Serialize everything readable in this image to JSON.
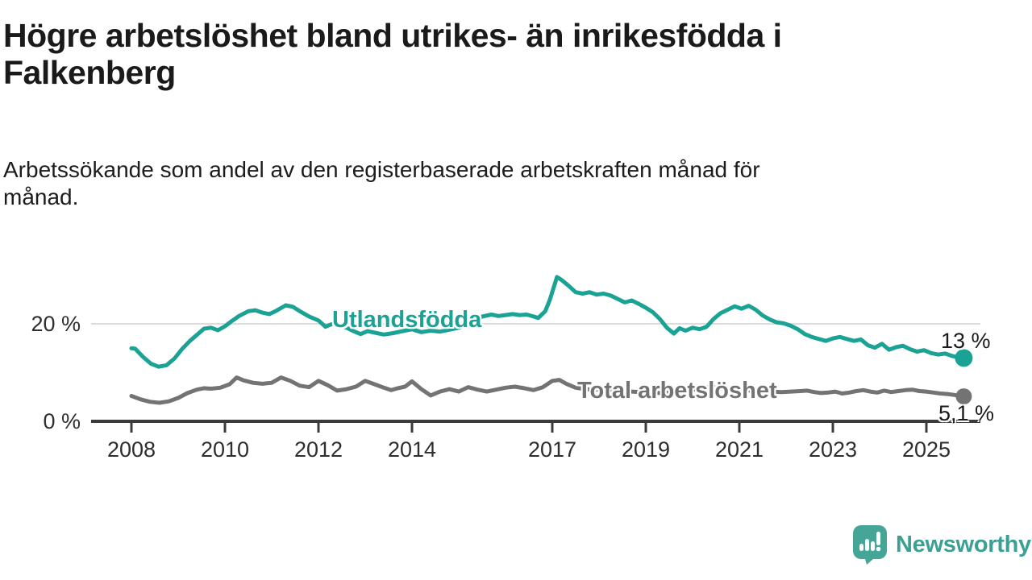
{
  "header": {
    "title_line1": "Högre arbetslöshet bland utrikes- än inrikesfödda i",
    "title_line2": "Falkenberg",
    "subtitle_line1": "Arbetssökande som andel av den registerbaserade arbetskraften månad för",
    "subtitle_line2": "månad."
  },
  "chart_data": {
    "type": "line",
    "title": "Högre arbetslöshet bland utrikes- än inrikesfödda i Falkenberg",
    "subtitle": "Arbetssökande som andel av den registerbaserade arbetskraften månad för månad.",
    "xlabel": "",
    "ylabel": "",
    "x_range": [
      2008,
      2025.8
    ],
    "ylim": [
      0,
      30
    ],
    "grid": "single-horizontal-at-20",
    "legend_position": "inline-labels-on-lines",
    "x_axis": {
      "ticks": [
        {
          "year": 2008,
          "label": "2008"
        },
        {
          "year": 2010,
          "label": "2010"
        },
        {
          "year": 2012,
          "label": "2012"
        },
        {
          "year": 2014,
          "label": "2014"
        },
        {
          "year": 2017,
          "label": "2017"
        },
        {
          "year": 2019,
          "label": "2019"
        },
        {
          "year": 2021,
          "label": "2021"
        },
        {
          "year": 2023,
          "label": "2023"
        },
        {
          "year": 2025,
          "label": "2025"
        }
      ]
    },
    "y_axis": {
      "ticks": [
        {
          "value": 0,
          "label": "0 %"
        },
        {
          "value": 20,
          "label": "20 %"
        }
      ]
    },
    "series": [
      {
        "name": "Utlandsfödda",
        "color": "#1aa294",
        "end_label": "13 %",
        "end_value": 13,
        "points": [
          [
            2008.0,
            15.0
          ],
          [
            2008.08,
            14.9
          ],
          [
            2008.25,
            13.2
          ],
          [
            2008.42,
            11.8
          ],
          [
            2008.58,
            11.2
          ],
          [
            2008.75,
            11.5
          ],
          [
            2008.92,
            12.9
          ],
          [
            2009.08,
            14.8
          ],
          [
            2009.25,
            16.5
          ],
          [
            2009.42,
            17.9
          ],
          [
            2009.55,
            19.0
          ],
          [
            2009.7,
            19.2
          ],
          [
            2009.85,
            18.7
          ],
          [
            2010.0,
            19.5
          ],
          [
            2010.15,
            20.6
          ],
          [
            2010.3,
            21.6
          ],
          [
            2010.5,
            22.6
          ],
          [
            2010.65,
            22.8
          ],
          [
            2010.8,
            22.3
          ],
          [
            2010.95,
            22.0
          ],
          [
            2011.1,
            22.7
          ],
          [
            2011.3,
            23.8
          ],
          [
            2011.45,
            23.5
          ],
          [
            2011.6,
            22.6
          ],
          [
            2011.8,
            21.5
          ],
          [
            2012.0,
            20.7
          ],
          [
            2012.15,
            19.4
          ],
          [
            2012.3,
            20.0
          ],
          [
            2012.45,
            19.7
          ],
          [
            2012.6,
            19.2
          ],
          [
            2012.75,
            18.5
          ],
          [
            2012.9,
            17.9
          ],
          [
            2013.05,
            18.5
          ],
          [
            2013.2,
            18.2
          ],
          [
            2013.4,
            17.8
          ],
          [
            2013.6,
            18.1
          ],
          [
            2013.8,
            18.5
          ],
          [
            2014.0,
            18.9
          ],
          [
            2014.2,
            18.3
          ],
          [
            2014.4,
            18.6
          ],
          [
            2014.6,
            18.4
          ],
          [
            2014.8,
            18.8
          ],
          [
            2015.0,
            19.2
          ],
          [
            2015.2,
            19.8
          ],
          [
            2015.35,
            20.6
          ],
          [
            2015.5,
            21.5
          ],
          [
            2015.7,
            21.9
          ],
          [
            2015.85,
            21.6
          ],
          [
            2016.0,
            21.8
          ],
          [
            2016.15,
            22.0
          ],
          [
            2016.3,
            21.8
          ],
          [
            2016.45,
            21.9
          ],
          [
            2016.6,
            21.5
          ],
          [
            2016.7,
            21.2
          ],
          [
            2016.85,
            22.6
          ],
          [
            2016.95,
            25.0
          ],
          [
            2017.1,
            29.6
          ],
          [
            2017.2,
            29.0
          ],
          [
            2017.35,
            27.8
          ],
          [
            2017.5,
            26.5
          ],
          [
            2017.65,
            26.2
          ],
          [
            2017.8,
            26.5
          ],
          [
            2017.95,
            26.0
          ],
          [
            2018.1,
            26.2
          ],
          [
            2018.25,
            25.8
          ],
          [
            2018.4,
            25.1
          ],
          [
            2018.55,
            24.4
          ],
          [
            2018.7,
            24.8
          ],
          [
            2018.85,
            24.1
          ],
          [
            2019.0,
            23.3
          ],
          [
            2019.15,
            22.4
          ],
          [
            2019.3,
            21.0
          ],
          [
            2019.45,
            19.2
          ],
          [
            2019.6,
            18.0
          ],
          [
            2019.72,
            19.1
          ],
          [
            2019.85,
            18.6
          ],
          [
            2020.0,
            19.2
          ],
          [
            2020.15,
            18.9
          ],
          [
            2020.3,
            19.4
          ],
          [
            2020.45,
            21.0
          ],
          [
            2020.6,
            22.2
          ],
          [
            2020.75,
            22.9
          ],
          [
            2020.9,
            23.6
          ],
          [
            2021.05,
            23.1
          ],
          [
            2021.2,
            23.7
          ],
          [
            2021.35,
            22.9
          ],
          [
            2021.5,
            21.7
          ],
          [
            2021.65,
            20.9
          ],
          [
            2021.8,
            20.3
          ],
          [
            2021.95,
            20.1
          ],
          [
            2022.1,
            19.6
          ],
          [
            2022.25,
            18.9
          ],
          [
            2022.4,
            17.9
          ],
          [
            2022.55,
            17.3
          ],
          [
            2022.7,
            16.9
          ],
          [
            2022.85,
            16.5
          ],
          [
            2023.0,
            17.0
          ],
          [
            2023.15,
            17.3
          ],
          [
            2023.3,
            16.9
          ],
          [
            2023.45,
            16.5
          ],
          [
            2023.6,
            16.8
          ],
          [
            2023.75,
            15.6
          ],
          [
            2023.9,
            15.1
          ],
          [
            2024.05,
            15.9
          ],
          [
            2024.2,
            14.7
          ],
          [
            2024.35,
            15.2
          ],
          [
            2024.5,
            15.5
          ],
          [
            2024.65,
            14.8
          ],
          [
            2024.8,
            14.3
          ],
          [
            2024.95,
            14.6
          ],
          [
            2025.1,
            14.0
          ],
          [
            2025.25,
            13.7
          ],
          [
            2025.4,
            13.9
          ],
          [
            2025.55,
            13.4
          ],
          [
            2025.7,
            13.1
          ],
          [
            2025.8,
            13.0
          ]
        ]
      },
      {
        "name": "Total arbetslöshet",
        "color": "#737373",
        "end_label": "5,1 %",
        "end_value": 5.1,
        "points": [
          [
            2008.0,
            5.2
          ],
          [
            2008.2,
            4.5
          ],
          [
            2008.4,
            4.0
          ],
          [
            2008.6,
            3.8
          ],
          [
            2008.8,
            4.1
          ],
          [
            2009.0,
            4.8
          ],
          [
            2009.2,
            5.8
          ],
          [
            2009.4,
            6.5
          ],
          [
            2009.55,
            6.8
          ],
          [
            2009.7,
            6.7
          ],
          [
            2009.9,
            6.9
          ],
          [
            2010.1,
            7.6
          ],
          [
            2010.25,
            9.0
          ],
          [
            2010.4,
            8.4
          ],
          [
            2010.6,
            7.9
          ],
          [
            2010.8,
            7.7
          ],
          [
            2011.0,
            7.9
          ],
          [
            2011.2,
            9.0
          ],
          [
            2011.4,
            8.3
          ],
          [
            2011.6,
            7.3
          ],
          [
            2011.8,
            7.0
          ],
          [
            2012.0,
            8.3
          ],
          [
            2012.2,
            7.4
          ],
          [
            2012.4,
            6.3
          ],
          [
            2012.6,
            6.6
          ],
          [
            2012.8,
            7.1
          ],
          [
            2013.0,
            8.3
          ],
          [
            2013.2,
            7.6
          ],
          [
            2013.4,
            6.9
          ],
          [
            2013.55,
            6.4
          ],
          [
            2013.7,
            6.8
          ],
          [
            2013.85,
            7.1
          ],
          [
            2014.0,
            8.2
          ],
          [
            2014.2,
            6.6
          ],
          [
            2014.4,
            5.3
          ],
          [
            2014.6,
            6.1
          ],
          [
            2014.8,
            6.6
          ],
          [
            2015.0,
            6.1
          ],
          [
            2015.2,
            7.0
          ],
          [
            2015.4,
            6.5
          ],
          [
            2015.6,
            6.1
          ],
          [
            2015.8,
            6.5
          ],
          [
            2016.0,
            6.9
          ],
          [
            2016.2,
            7.1
          ],
          [
            2016.4,
            6.8
          ],
          [
            2016.6,
            6.4
          ],
          [
            2016.8,
            7.0
          ],
          [
            2017.0,
            8.3
          ],
          [
            2017.15,
            8.5
          ],
          [
            2017.3,
            7.7
          ],
          [
            2017.5,
            6.9
          ],
          [
            2017.7,
            6.6
          ],
          [
            2017.9,
            6.5
          ],
          [
            2018.1,
            6.6
          ],
          [
            2018.3,
            6.4
          ],
          [
            2018.5,
            6.2
          ],
          [
            2018.7,
            6.1
          ],
          [
            2018.9,
            6.0
          ],
          [
            2019.1,
            5.9
          ],
          [
            2019.3,
            5.8
          ],
          [
            2019.5,
            5.9
          ],
          [
            2019.7,
            6.0
          ],
          [
            2019.9,
            6.2
          ],
          [
            2020.1,
            6.6
          ],
          [
            2020.3,
            7.0
          ],
          [
            2020.5,
            6.9
          ],
          [
            2020.7,
            6.7
          ],
          [
            2020.9,
            6.5
          ],
          [
            2021.1,
            6.4
          ],
          [
            2021.3,
            6.3
          ],
          [
            2021.5,
            6.2
          ],
          [
            2021.7,
            6.1
          ],
          [
            2021.9,
            6.0
          ],
          [
            2022.1,
            6.1
          ],
          [
            2022.3,
            6.2
          ],
          [
            2022.45,
            6.3
          ],
          [
            2022.6,
            6.0
          ],
          [
            2022.75,
            5.8
          ],
          [
            2022.9,
            5.9
          ],
          [
            2023.05,
            6.1
          ],
          [
            2023.2,
            5.7
          ],
          [
            2023.35,
            5.9
          ],
          [
            2023.5,
            6.2
          ],
          [
            2023.65,
            6.4
          ],
          [
            2023.8,
            6.1
          ],
          [
            2023.95,
            5.9
          ],
          [
            2024.1,
            6.3
          ],
          [
            2024.25,
            6.0
          ],
          [
            2024.4,
            6.2
          ],
          [
            2024.55,
            6.4
          ],
          [
            2024.7,
            6.5
          ],
          [
            2024.85,
            6.2
          ],
          [
            2025.0,
            6.1
          ],
          [
            2025.15,
            5.9
          ],
          [
            2025.3,
            5.7
          ],
          [
            2025.45,
            5.6
          ],
          [
            2025.6,
            5.4
          ],
          [
            2025.8,
            5.1
          ]
        ]
      }
    ],
    "colors": {
      "gridline": "#dcdcdc",
      "axis": "#3b3b3b",
      "tick_label": "#2e2e2e"
    }
  },
  "branding": {
    "logo_text": "Newsworthy",
    "logo_color": "#45a597",
    "logo_text_color": "#3ba093"
  }
}
